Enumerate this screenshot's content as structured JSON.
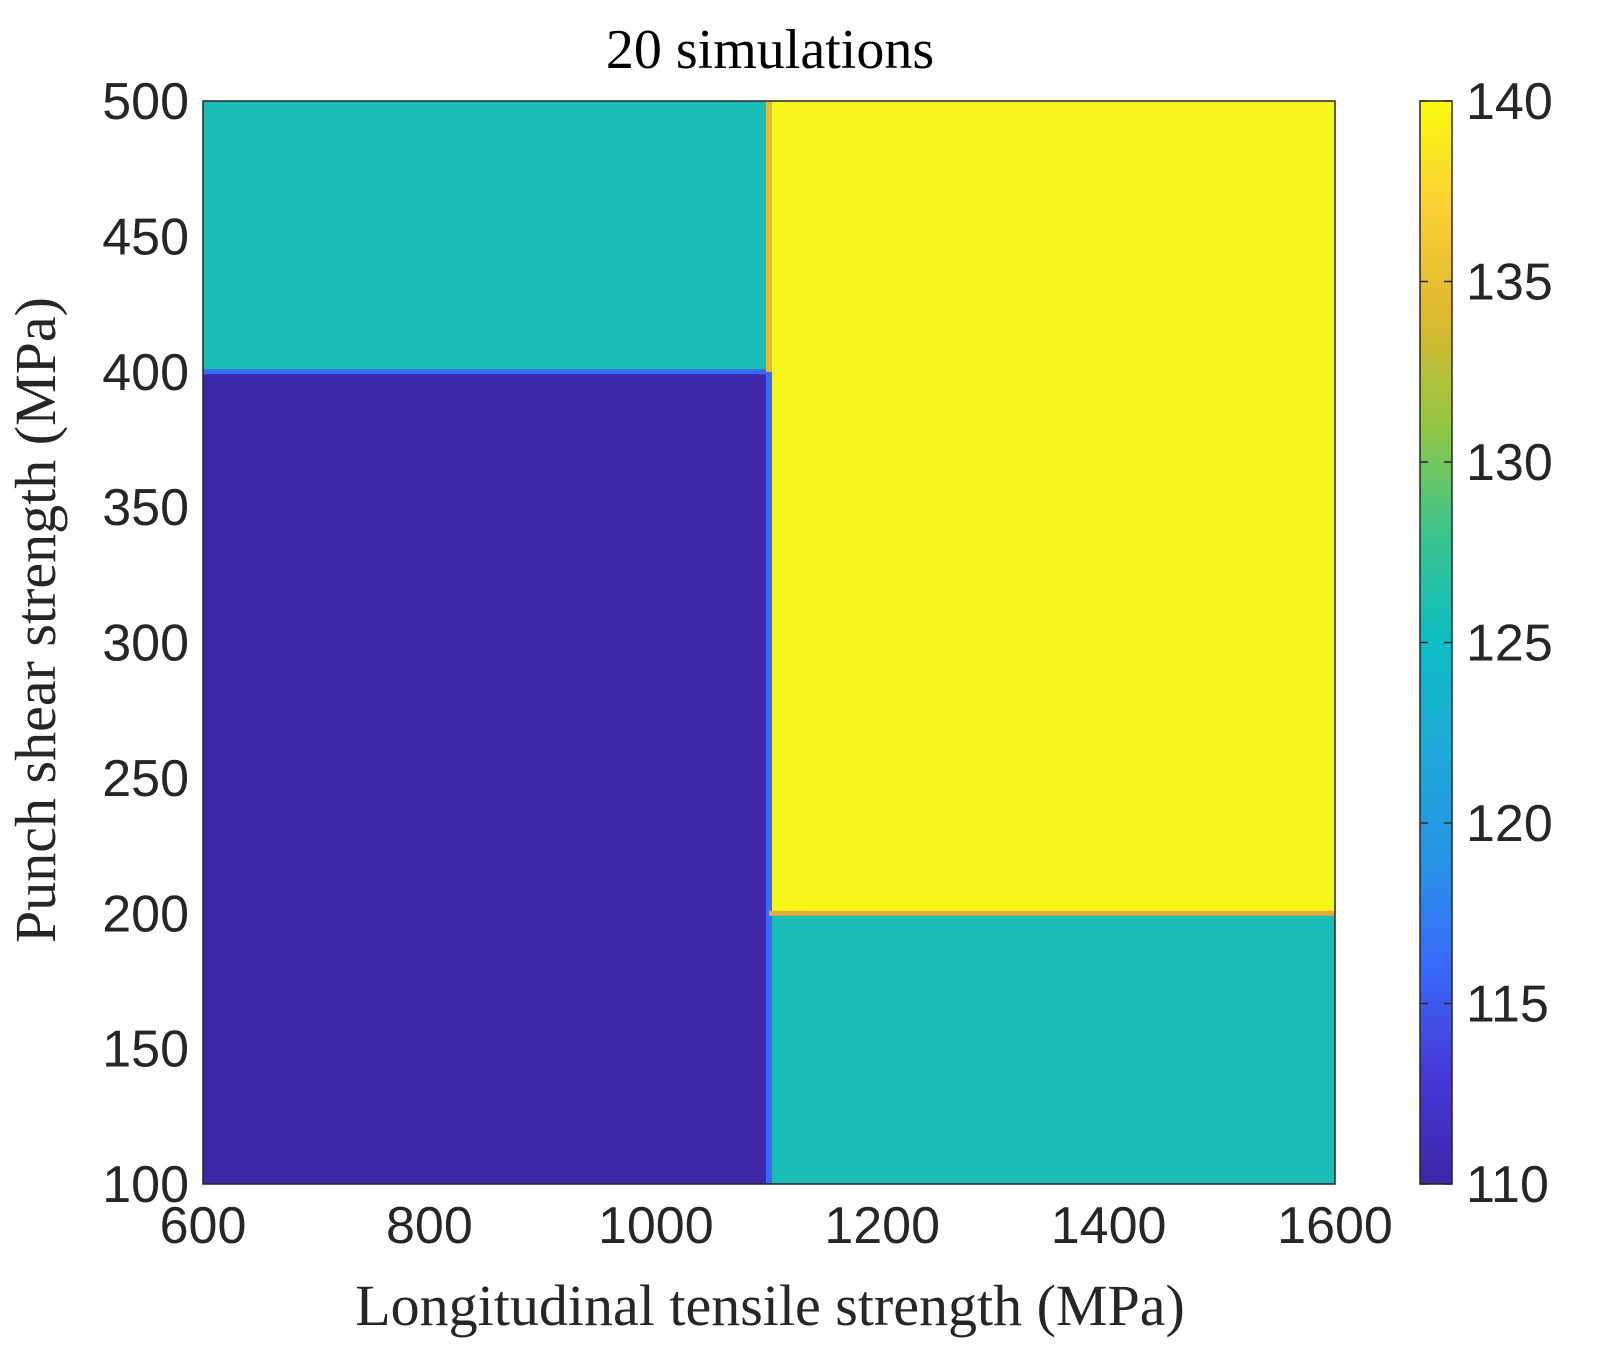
{
  "chart_data": {
    "type": "heatmap",
    "title": "20 simulations",
    "xlabel": "Longitudinal tensile strength (MPa)",
    "ylabel": "Punch shear strength (MPa)",
    "xlim": [
      600,
      1600
    ],
    "ylim": [
      100,
      500
    ],
    "x_ticks": [
      "600",
      "800",
      "1000",
      "1200",
      "1400",
      "1600"
    ],
    "y_ticks": [
      "100",
      "150",
      "200",
      "250",
      "300",
      "350",
      "400",
      "450",
      "500"
    ],
    "colorbar": {
      "range": [
        110,
        140
      ],
      "ticks": [
        "110",
        "115",
        "120",
        "125",
        "130",
        "135",
        "140"
      ],
      "colormap": "parula"
    },
    "regions": [
      {
        "x": [
          600,
          1100
        ],
        "y": [
          400,
          500
        ],
        "value": 125
      },
      {
        "x": [
          600,
          1100
        ],
        "y": [
          100,
          400
        ],
        "value": 110
      },
      {
        "x": [
          1100,
          1600
        ],
        "y": [
          200,
          500
        ],
        "value": 140
      },
      {
        "x": [
          1100,
          1600
        ],
        "y": [
          100,
          200
        ],
        "value": 125
      }
    ],
    "colors": {
      "v110": "#3d26a8",
      "v125": "#1bbeb4",
      "v140": "#f6f61a"
    }
  }
}
